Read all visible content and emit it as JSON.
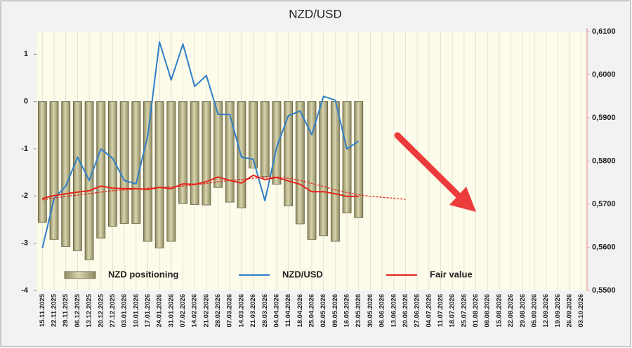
{
  "chart_data": {
    "type": "bar",
    "title": "NZD/USD",
    "categories": [
      "15.11.2025",
      "22.11.2025",
      "29.11.2025",
      "06.12.2025",
      "13.12.2025",
      "20.12.2025",
      "27.12.2025",
      "03.01.2026",
      "10.01.2026",
      "17.01.2026",
      "24.01.2026",
      "31.01.2026",
      "07.02.2026",
      "14.02.2026",
      "21.02.2026",
      "28.02.2026",
      "07.03.2026",
      "14.03.2026",
      "21.03.2026",
      "28.03.2026",
      "04.04.2026",
      "11.04.2026",
      "18.04.2026",
      "25.04.2026",
      "02.05.2026",
      "09.05.2026",
      "16.05.2026",
      "23.05.2026",
      "30.05.2026",
      "06.06.2026",
      "13.06.2026",
      "20.06.2026",
      "27.06.2026",
      "04.07.2026",
      "11.07.2026",
      "18.07.2026",
      "25.07.2026",
      "01.08.2026",
      "08.08.2026",
      "15.08.2026",
      "22.08.2026",
      "29.08.2026",
      "05.09.2026",
      "12.09.2026",
      "19.09.2026",
      "26.09.2026",
      "03.10.2026"
    ],
    "series": [
      {
        "name": "NZD positioning",
        "type": "bar",
        "axis": "y",
        "color": "#c9c59c",
        "values": [
          -2.56,
          -2.92,
          -3.07,
          -3.16,
          -3.35,
          -2.89,
          -2.64,
          -2.58,
          -2.58,
          -2.96,
          -3.1,
          -2.96,
          -2.16,
          -2.18,
          -2.19,
          -1.82,
          -2.13,
          -2.25,
          -1.41,
          -1.59,
          -1.75,
          -2.21,
          -2.59,
          -2.92,
          -2.84,
          -2.96,
          -2.36,
          -2.46,
          null,
          null,
          null,
          null,
          null,
          null,
          null,
          null,
          null,
          null,
          null,
          null,
          null,
          null,
          null,
          null,
          null,
          null,
          null
        ]
      },
      {
        "name": "NZD/USD",
        "type": "line",
        "axis": "y2",
        "color": "#2f7fc8",
        "values": [
          0.5598,
          0.5713,
          0.5742,
          0.5809,
          0.5755,
          0.5828,
          0.5806,
          0.5755,
          0.5747,
          0.5859,
          0.6076,
          0.5988,
          0.6071,
          0.5973,
          0.5998,
          0.5908,
          0.5908,
          0.5809,
          0.5804,
          0.5708,
          0.5832,
          0.5905,
          0.5916,
          0.5861,
          0.595,
          0.5941,
          0.5828,
          0.5846,
          null,
          null,
          null,
          null,
          null,
          null,
          null,
          null,
          null,
          null,
          null,
          null,
          null,
          null,
          null,
          null,
          null,
          null,
          null
        ]
      },
      {
        "name": "Fair value",
        "type": "line",
        "axis": "y2",
        "color": "#e8231b",
        "values": [
          0.5713,
          0.572,
          0.5724,
          0.5728,
          0.5731,
          0.5742,
          0.5737,
          0.5736,
          0.5736,
          0.5734,
          0.5739,
          0.5736,
          0.5747,
          0.5746,
          0.5752,
          0.5763,
          0.5755,
          0.5749,
          0.5767,
          0.5757,
          0.5762,
          0.5754,
          0.5746,
          0.5729,
          0.5729,
          0.5724,
          0.5718,
          0.5718,
          null,
          null,
          null,
          null,
          null,
          null,
          null,
          null,
          null,
          null,
          null,
          null,
          null,
          null,
          null,
          null,
          null,
          null,
          null
        ]
      },
      {
        "type": "line",
        "axis": "y2",
        "color": "#e8231b",
        "dashed": true,
        "values": [
          0.571,
          0.5714,
          0.5718,
          0.5721,
          0.5724,
          0.5728,
          0.5731,
          0.5733,
          0.5735,
          0.5737,
          0.5739,
          0.574,
          0.5742,
          0.5745,
          0.5748,
          0.5752,
          0.5755,
          0.5757,
          0.576,
          0.5762,
          0.5763,
          0.576,
          0.5755,
          0.5748,
          0.5741,
          0.5733,
          0.5727,
          0.5722,
          0.5718,
          0.5716,
          0.5714,
          0.5711,
          null,
          null,
          null,
          null,
          null,
          null,
          null,
          null,
          null,
          null,
          null,
          null,
          null,
          null,
          null
        ]
      }
    ],
    "ylim": [
      -4,
      1.48
    ],
    "yticks": [
      -4,
      -3,
      -2,
      -1,
      0,
      1
    ],
    "y2lim": [
      0.55,
      0.61
    ],
    "y2ticks": [
      {
        "value": 0.55,
        "label": "0,5500"
      },
      {
        "value": 0.56,
        "label": "0,5600"
      },
      {
        "value": 0.57,
        "label": "0,5700"
      },
      {
        "value": 0.58,
        "label": "0,5800"
      },
      {
        "value": 0.59,
        "label": "0,5900"
      },
      {
        "value": 0.6,
        "label": "0,6000"
      },
      {
        "value": 0.61,
        "label": "0,6100"
      }
    ],
    "grid": true
  }
}
